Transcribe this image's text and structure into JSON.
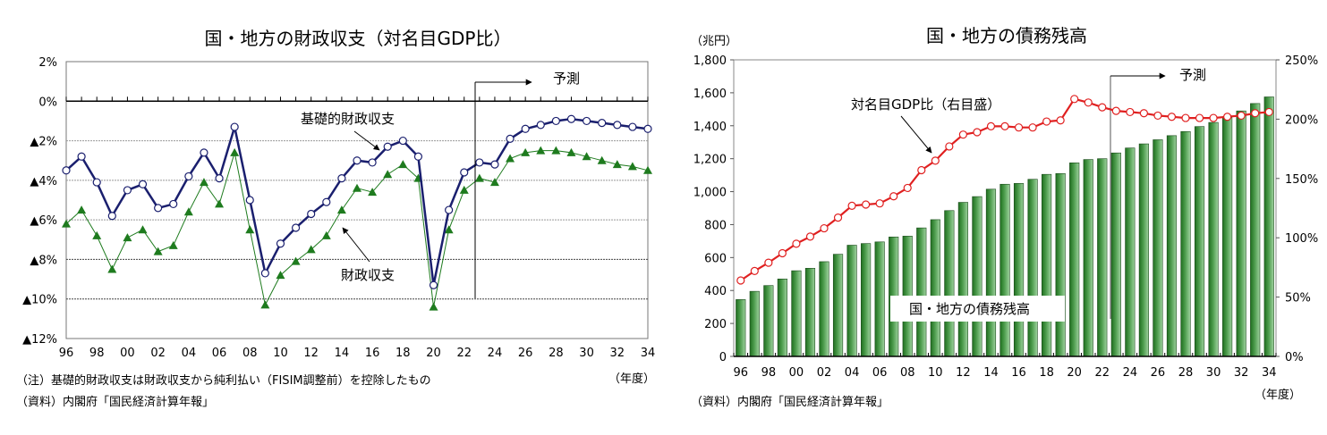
{
  "chart_data": [
    {
      "type": "line",
      "title": "国・地方の財政収支（対名目GDP比）",
      "xlabel": "（年度）",
      "ylabel": "",
      "ylim": [
        -12,
        2
      ],
      "yticks": [
        2,
        0,
        -2,
        -4,
        -6,
        -8,
        -10,
        -12
      ],
      "ytick_labels": [
        "2%",
        "0%",
        "▲2%",
        "▲4%",
        "▲6%",
        "▲8%",
        "▲10%",
        "▲12%"
      ],
      "x": [
        "96",
        "97",
        "98",
        "99",
        "00",
        "01",
        "02",
        "03",
        "04",
        "05",
        "06",
        "07",
        "08",
        "09",
        "10",
        "11",
        "12",
        "13",
        "14",
        "15",
        "16",
        "17",
        "18",
        "19",
        "20",
        "21",
        "22",
        "23",
        "24",
        "25",
        "26",
        "27",
        "28",
        "29",
        "30",
        "31",
        "32",
        "33",
        "34"
      ],
      "xtick_labels": [
        "96",
        "98",
        "00",
        "02",
        "04",
        "06",
        "08",
        "10",
        "12",
        "14",
        "16",
        "18",
        "20",
        "22",
        "24",
        "26",
        "28",
        "30",
        "32",
        "34"
      ],
      "grid": true,
      "forecast_label": "予測",
      "forecast_start": "23",
      "series": [
        {
          "name": "基礎的財政収支",
          "color": "#1a1f6e",
          "marker": "circle",
          "values": [
            -3.5,
            -2.8,
            -4.1,
            -5.8,
            -4.5,
            -4.2,
            -5.4,
            -5.2,
            -3.8,
            -2.6,
            -3.9,
            -1.3,
            -5.0,
            -8.7,
            -7.2,
            -6.4,
            -5.7,
            -5.1,
            -3.9,
            -3.0,
            -3.1,
            -2.3,
            -2.0,
            -2.8,
            -9.3,
            -5.5,
            -3.6,
            -3.1,
            -3.2,
            -1.9,
            -1.4,
            -1.2,
            -1.0,
            -0.9,
            -1.0,
            -1.1,
            -1.2,
            -1.3,
            -1.4
          ]
        },
        {
          "name": "財政収支",
          "color": "#1e7b1e",
          "marker": "triangle",
          "values": [
            -6.2,
            -5.5,
            -6.8,
            -8.5,
            -6.9,
            -6.5,
            -7.6,
            -7.3,
            -5.6,
            -4.1,
            -5.2,
            -2.6,
            -6.5,
            -10.3,
            -8.8,
            -8.1,
            -7.5,
            -6.8,
            -5.5,
            -4.4,
            -4.6,
            -3.7,
            -3.2,
            -3.9,
            -10.4,
            -6.5,
            -4.5,
            -3.9,
            -4.1,
            -2.9,
            -2.6,
            -2.5,
            -2.5,
            -2.6,
            -2.8,
            -3.0,
            -3.2,
            -3.3,
            -3.5
          ]
        }
      ],
      "notes": [
        "（注）基礎的財政収支は財政収支から純利払い（FISIM調整前）を控除したもの",
        "（資料）内閣府「国民経済計算年報」"
      ]
    },
    {
      "type": "bar",
      "title": "国・地方の債務残高",
      "xlabel": "（年度）",
      "ylabel": "（兆円）",
      "ylim": [
        0,
        1800
      ],
      "yticks": [
        0,
        200,
        400,
        600,
        800,
        1000,
        1200,
        1400,
        1600,
        1800
      ],
      "ytick_labels": [
        "0",
        "200",
        "400",
        "600",
        "800",
        "1,000",
        "1,200",
        "1,400",
        "1,600",
        "1,800"
      ],
      "y2lim": [
        0,
        250
      ],
      "y2ticks": [
        0,
        50,
        100,
        150,
        200,
        250
      ],
      "y2tick_labels": [
        "0%",
        "50%",
        "100%",
        "150%",
        "200%",
        "250%"
      ],
      "x": [
        "96",
        "97",
        "98",
        "99",
        "00",
        "01",
        "02",
        "03",
        "04",
        "05",
        "06",
        "07",
        "08",
        "09",
        "10",
        "11",
        "12",
        "13",
        "14",
        "15",
        "16",
        "17",
        "18",
        "19",
        "20",
        "21",
        "22",
        "23",
        "24",
        "25",
        "26",
        "27",
        "28",
        "29",
        "30",
        "31",
        "32",
        "33",
        "34"
      ],
      "xtick_labels": [
        "96",
        "98",
        "00",
        "02",
        "04",
        "06",
        "08",
        "10",
        "12",
        "14",
        "16",
        "18",
        "20",
        "22",
        "24",
        "26",
        "28",
        "30",
        "32",
        "34"
      ],
      "grid": false,
      "forecast_label": "予測",
      "forecast_start": "23",
      "series": [
        {
          "name": "国・地方の債務残高",
          "type": "bar",
          "axis": "left",
          "color": "#3d8f3d",
          "values": [
            345,
            395,
            430,
            470,
            520,
            535,
            575,
            620,
            675,
            685,
            695,
            725,
            730,
            780,
            830,
            885,
            935,
            970,
            1015,
            1045,
            1050,
            1075,
            1105,
            1110,
            1175,
            1195,
            1200,
            1235,
            1265,
            1290,
            1315,
            1340,
            1365,
            1395,
            1420,
            1450,
            1490,
            1535,
            1575
          ]
        },
        {
          "name": "対名目GDP比（右目盛）",
          "type": "line",
          "axis": "right",
          "color": "#e02020",
          "marker": "circle",
          "values": [
            64,
            72,
            79,
            87,
            95,
            101,
            108,
            117,
            127,
            128,
            129,
            135,
            142,
            157,
            165,
            177,
            187,
            189,
            194,
            194,
            193,
            193,
            198,
            199,
            217,
            214,
            210,
            207,
            206,
            205,
            203,
            202,
            201,
            201,
            201,
            202,
            203,
            205,
            206
          ]
        }
      ],
      "notes": [
        "（資料）内閣府「国民経済計算年報」"
      ]
    }
  ]
}
